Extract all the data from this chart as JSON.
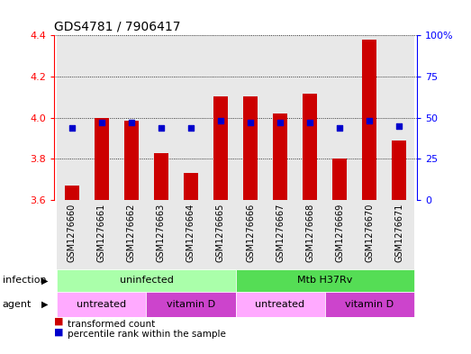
{
  "title": "GDS4781 / 7906417",
  "samples": [
    "GSM1276660",
    "GSM1276661",
    "GSM1276662",
    "GSM1276663",
    "GSM1276664",
    "GSM1276665",
    "GSM1276666",
    "GSM1276667",
    "GSM1276668",
    "GSM1276669",
    "GSM1276670",
    "GSM1276671"
  ],
  "transformed_count": [
    3.67,
    4.0,
    3.985,
    3.83,
    3.73,
    4.105,
    4.105,
    4.02,
    4.115,
    3.8,
    4.38,
    3.89
  ],
  "percentile_rank": [
    44,
    47,
    47,
    44,
    44,
    48,
    47,
    47,
    47,
    44,
    48,
    45
  ],
  "ymin": 3.6,
  "ymax": 4.4,
  "yticks": [
    3.6,
    3.8,
    4.0,
    4.2,
    4.4
  ],
  "y2min": 0,
  "y2max": 100,
  "y2ticks": [
    0,
    25,
    50,
    75,
    100
  ],
  "y2ticklabels": [
    "0",
    "25",
    "50",
    "75",
    "100%"
  ],
  "bar_color": "#cc0000",
  "dot_color": "#0000cc",
  "bar_width": 0.5,
  "dot_size": 22,
  "sample_bg_color": "#cccccc",
  "infection_uninfected_color": "#aaffaa",
  "infection_mtb_color": "#55dd55",
  "agent_untreated_color": "#ffaaff",
  "agent_vitamind_color": "#cc44cc",
  "legend_bar_color": "#cc0000",
  "legend_dot_color": "#0000cc"
}
